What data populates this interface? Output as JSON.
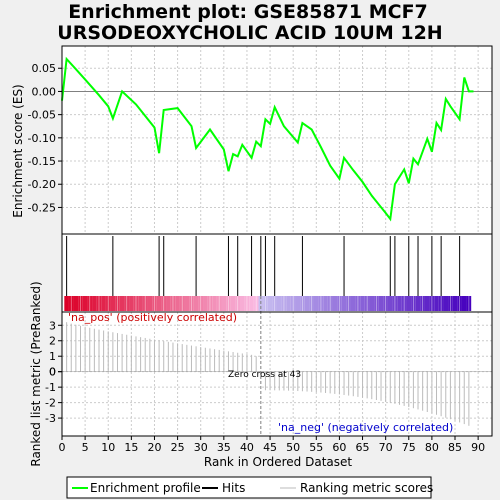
{
  "chart_data": {
    "type": "line",
    "title_line1": "Enrichment plot: GSE85871 MCF7",
    "title_line2": "URSODEOXYCHOLIC ACID 10UM 12H",
    "xlabel": "Rank in Ordered Dataset",
    "ylabel_top": "Enrichment score (ES)",
    "ylabel_bottom": "Ranked list metric (PreRanked)",
    "xlim": [
      0,
      93
    ],
    "es_ylim": [
      -0.29,
      0.085
    ],
    "metric_ylim": [
      -3.9,
      3.6
    ],
    "x_ticks": [
      "0",
      "5",
      "10",
      "15",
      "20",
      "25",
      "30",
      "35",
      "40",
      "45",
      "50",
      "55",
      "60",
      "65",
      "70",
      "75",
      "80",
      "85",
      "90"
    ],
    "es_ticks": [
      "0.05",
      "0.00",
      "-0.05",
      "-0.10",
      "-0.15",
      "-0.20",
      "-0.25"
    ],
    "metric_ticks": [
      "3",
      "2",
      "1",
      "0",
      "-1",
      "-2",
      "-3"
    ],
    "es_curve": {
      "x": [
        0,
        1,
        3,
        5,
        8,
        10,
        11,
        13,
        16,
        20,
        21,
        22,
        25,
        28,
        29,
        32,
        35,
        36,
        37,
        38,
        39,
        41,
        42,
        43,
        44,
        45,
        46,
        48,
        51,
        52,
        54,
        56,
        58,
        60,
        61,
        63,
        65,
        67,
        70,
        71,
        72,
        74,
        75,
        76,
        77,
        79,
        80,
        81,
        82,
        83,
        84,
        86,
        87,
        88,
        89
      ],
      "y": [
        -0.02,
        0.07,
        0.048,
        0.026,
        -0.008,
        -0.032,
        -0.058,
        0.0,
        -0.028,
        -0.078,
        -0.133,
        -0.04,
        -0.036,
        -0.075,
        -0.122,
        -0.082,
        -0.125,
        -0.172,
        -0.135,
        -0.14,
        -0.115,
        -0.143,
        -0.108,
        -0.118,
        -0.06,
        -0.07,
        -0.034,
        -0.075,
        -0.11,
        -0.068,
        -0.082,
        -0.12,
        -0.16,
        -0.188,
        -0.143,
        -0.17,
        -0.195,
        -0.225,
        -0.262,
        -0.275,
        -0.2,
        -0.168,
        -0.198,
        -0.145,
        -0.157,
        -0.102,
        -0.13,
        -0.068,
        -0.083,
        -0.016,
        -0.032,
        -0.06,
        0.03,
        0.0,
        0.0
      ]
    },
    "hits": [
      1,
      11,
      21,
      22,
      29,
      36,
      38,
      41,
      43,
      44,
      46,
      52,
      61,
      71,
      72,
      75,
      77,
      80,
      82,
      86
    ],
    "metric_start": 3.2,
    "metric_end": -3.5,
    "zero_cross_rank": 43,
    "n_ranks": 88,
    "pos_label": "'na_pos' (positively correlated)",
    "neg_label": "'na_neg' (negatively correlated)",
    "zero_cross_label": "Zero cross at 43",
    "legend": [
      "Enrichment profile",
      "Hits",
      "Ranking metric scores"
    ],
    "colors": {
      "es_line": "#00ff00",
      "hit_line": "#000000",
      "metric": "#bbbbbb",
      "pos_label": "#cc0000",
      "neg_label": "#0000cc",
      "zero_cross_line": "#808080",
      "grid": "#cccccc"
    }
  }
}
